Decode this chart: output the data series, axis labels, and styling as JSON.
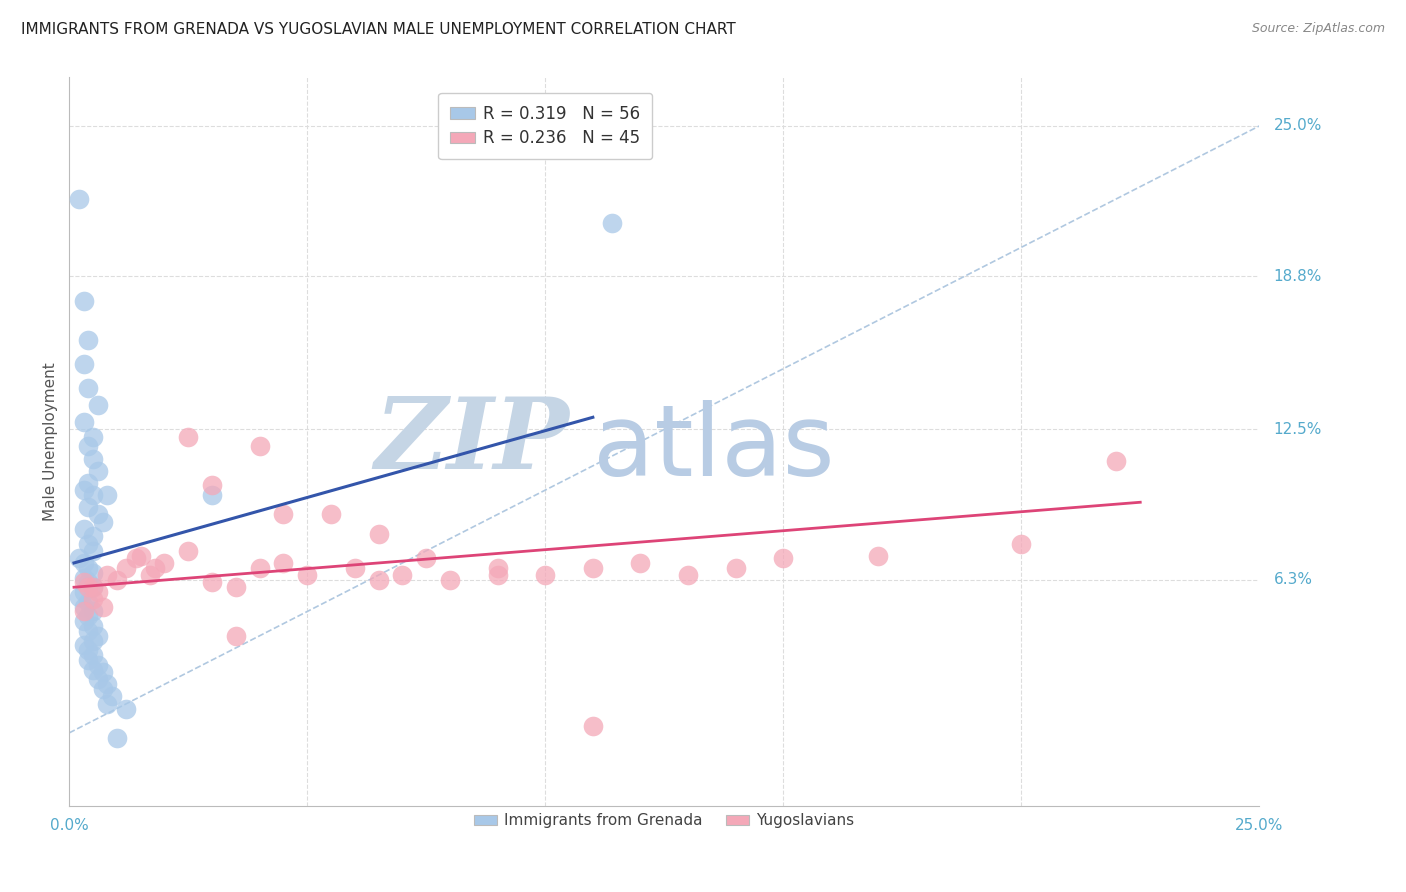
{
  "title": "IMMIGRANTS FROM GRENADA VS YUGOSLAVIAN MALE UNEMPLOYMENT CORRELATION CHART",
  "source": "Source: ZipAtlas.com",
  "ylabel": "Male Unemployment",
  "xlim": [
    0.0,
    0.25
  ],
  "ylim": [
    -0.03,
    0.27
  ],
  "ytick_labels": [
    "6.3%",
    "12.5%",
    "18.8%",
    "25.0%"
  ],
  "ytick_values": [
    0.063,
    0.125,
    0.188,
    0.25
  ],
  "xtick_values": [
    0.0,
    0.05,
    0.1,
    0.15,
    0.2,
    0.25
  ],
  "watermark_zip": "ZIP",
  "watermark_atlas": "atlas",
  "blue_scatter": [
    [
      0.002,
      0.22
    ],
    [
      0.003,
      0.178
    ],
    [
      0.004,
      0.162
    ],
    [
      0.003,
      0.152
    ],
    [
      0.004,
      0.142
    ],
    [
      0.006,
      0.135
    ],
    [
      0.003,
      0.128
    ],
    [
      0.005,
      0.122
    ],
    [
      0.004,
      0.118
    ],
    [
      0.005,
      0.113
    ],
    [
      0.006,
      0.108
    ],
    [
      0.004,
      0.103
    ],
    [
      0.005,
      0.098
    ],
    [
      0.004,
      0.093
    ],
    [
      0.006,
      0.09
    ],
    [
      0.007,
      0.087
    ],
    [
      0.003,
      0.084
    ],
    [
      0.005,
      0.081
    ],
    [
      0.004,
      0.078
    ],
    [
      0.005,
      0.075
    ],
    [
      0.003,
      0.1
    ],
    [
      0.008,
      0.098
    ],
    [
      0.002,
      0.072
    ],
    [
      0.003,
      0.07
    ],
    [
      0.004,
      0.068
    ],
    [
      0.005,
      0.066
    ],
    [
      0.003,
      0.064
    ],
    [
      0.004,
      0.062
    ],
    [
      0.005,
      0.06
    ],
    [
      0.003,
      0.058
    ],
    [
      0.002,
      0.056
    ],
    [
      0.004,
      0.054
    ],
    [
      0.003,
      0.052
    ],
    [
      0.005,
      0.05
    ],
    [
      0.004,
      0.048
    ],
    [
      0.003,
      0.046
    ],
    [
      0.005,
      0.044
    ],
    [
      0.004,
      0.042
    ],
    [
      0.006,
      0.04
    ],
    [
      0.005,
      0.038
    ],
    [
      0.003,
      0.036
    ],
    [
      0.004,
      0.034
    ],
    [
      0.005,
      0.032
    ],
    [
      0.004,
      0.03
    ],
    [
      0.006,
      0.028
    ],
    [
      0.005,
      0.026
    ],
    [
      0.007,
      0.025
    ],
    [
      0.006,
      0.022
    ],
    [
      0.008,
      0.02
    ],
    [
      0.007,
      0.018
    ],
    [
      0.009,
      0.015
    ],
    [
      0.008,
      0.012
    ],
    [
      0.012,
      0.01
    ],
    [
      0.01,
      -0.002
    ],
    [
      0.114,
      0.21
    ],
    [
      0.03,
      0.098
    ]
  ],
  "pink_scatter": [
    [
      0.003,
      0.062
    ],
    [
      0.004,
      0.06
    ],
    [
      0.006,
      0.058
    ],
    [
      0.005,
      0.055
    ],
    [
      0.007,
      0.052
    ],
    [
      0.003,
      0.05
    ],
    [
      0.008,
      0.065
    ],
    [
      0.01,
      0.063
    ],
    [
      0.005,
      0.06
    ],
    [
      0.012,
      0.068
    ],
    [
      0.015,
      0.073
    ],
    [
      0.014,
      0.072
    ],
    [
      0.02,
      0.07
    ],
    [
      0.018,
      0.068
    ],
    [
      0.025,
      0.075
    ],
    [
      0.017,
      0.065
    ],
    [
      0.03,
      0.062
    ],
    [
      0.035,
      0.06
    ],
    [
      0.04,
      0.068
    ],
    [
      0.045,
      0.07
    ],
    [
      0.05,
      0.065
    ],
    [
      0.06,
      0.068
    ],
    [
      0.065,
      0.063
    ],
    [
      0.07,
      0.065
    ],
    [
      0.08,
      0.063
    ],
    [
      0.09,
      0.065
    ],
    [
      0.1,
      0.065
    ],
    [
      0.11,
      0.068
    ],
    [
      0.15,
      0.072
    ],
    [
      0.2,
      0.078
    ],
    [
      0.22,
      0.112
    ],
    [
      0.025,
      0.122
    ],
    [
      0.03,
      0.102
    ],
    [
      0.04,
      0.118
    ],
    [
      0.045,
      0.09
    ],
    [
      0.055,
      0.09
    ],
    [
      0.065,
      0.082
    ],
    [
      0.075,
      0.072
    ],
    [
      0.09,
      0.068
    ],
    [
      0.12,
      0.07
    ],
    [
      0.13,
      0.065
    ],
    [
      0.14,
      0.068
    ],
    [
      0.17,
      0.073
    ],
    [
      0.035,
      0.04
    ],
    [
      0.11,
      0.003
    ]
  ],
  "blue_line_x": [
    0.001,
    0.11
  ],
  "blue_line_y": [
    0.07,
    0.13
  ],
  "pink_line_x": [
    0.001,
    0.225
  ],
  "pink_line_y": [
    0.06,
    0.095
  ],
  "diagonal_line_x": [
    0.0,
    0.25
  ],
  "diagonal_line_y": [
    0.0,
    0.25
  ],
  "blue_color": "#a8c8e8",
  "pink_color": "#f4a8b8",
  "blue_line_color": "#3355aa",
  "pink_line_color": "#dd4477",
  "diagonal_color": "#b0c8e0",
  "diagonal_style": "--",
  "background_color": "#ffffff",
  "grid_color": "#dddddd",
  "title_color": "#222222",
  "watermark_color_zip": "#c5d5e5",
  "watermark_color_atlas": "#b8cce4",
  "source_color": "#888888",
  "right_label_color": "#55aacc",
  "bottom_label_color": "#55aacc"
}
